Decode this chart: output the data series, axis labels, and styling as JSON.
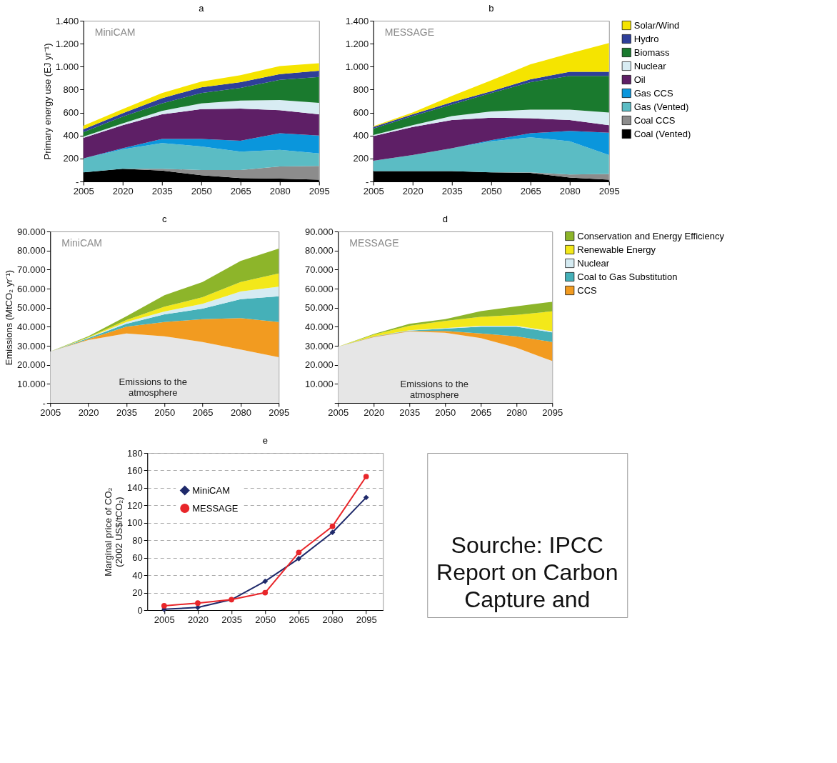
{
  "chart_data": [
    {
      "type": "area",
      "title": "a",
      "subtitle": "MiniCAM",
      "ylabel": "Primary energy use (EJ yr⁻¹)",
      "stacked": true,
      "x": [
        2005,
        2020,
        2035,
        2050,
        2065,
        2080,
        2095
      ],
      "xlim": [
        2005,
        2095
      ],
      "xticks": [
        2005,
        2020,
        2035,
        2050,
        2065,
        2080,
        2095
      ],
      "ylim": [
        0,
        1400
      ],
      "yticks": [
        {
          "value": 0,
          "label": "-"
        },
        {
          "value": 200,
          "label": "200"
        },
        {
          "value": 400,
          "label": "400"
        },
        {
          "value": 600,
          "label": "600"
        },
        {
          "value": 800,
          "label": "800"
        },
        {
          "value": 1000,
          "label": "1.000"
        },
        {
          "value": 1200,
          "label": "1.200"
        },
        {
          "value": 1400,
          "label": "1.400"
        }
      ],
      "series": [
        {
          "color": "#000000",
          "values": [
            80,
            110,
            95,
            55,
            30,
            25,
            15
          ]
        },
        {
          "color": "#8c8c8c",
          "values": [
            0,
            0,
            15,
            45,
            70,
            105,
            120
          ]
        },
        {
          "color": "#5bbcc4",
          "values": [
            120,
            170,
            225,
            205,
            160,
            145,
            110
          ]
        },
        {
          "color": "#0a96dc",
          "values": [
            0,
            10,
            35,
            65,
            95,
            145,
            155
          ]
        },
        {
          "color": "#5e1f66",
          "values": [
            180,
            200,
            215,
            260,
            280,
            200,
            185
          ]
        },
        {
          "color": "#d8ecf3",
          "values": [
            10,
            15,
            30,
            50,
            70,
            90,
            100
          ]
        },
        {
          "color": "#1a7a2e",
          "values": [
            40,
            60,
            65,
            90,
            110,
            175,
            225
          ]
        },
        {
          "color": "#2e3f99",
          "values": [
            25,
            30,
            45,
            50,
            50,
            50,
            55
          ]
        },
        {
          "color": "#f5e400",
          "values": [
            30,
            35,
            45,
            50,
            60,
            70,
            65
          ]
        }
      ]
    },
    {
      "type": "area",
      "title": "b",
      "subtitle": "MESSAGE",
      "stacked": true,
      "legend": "right",
      "x": [
        2005,
        2020,
        2035,
        2050,
        2065,
        2080,
        2095
      ],
      "xlim": [
        2005,
        2095
      ],
      "xticks": [
        2005,
        2020,
        2035,
        2050,
        2065,
        2080,
        2095
      ],
      "ylim": [
        0,
        1400
      ],
      "yticks": [
        {
          "value": 0,
          "label": "-"
        },
        {
          "value": 200,
          "label": "200"
        },
        {
          "value": 400,
          "label": "400"
        },
        {
          "value": 600,
          "label": "600"
        },
        {
          "value": 800,
          "label": "800"
        },
        {
          "value": 1000,
          "label": "1.000"
        },
        {
          "value": 1200,
          "label": "1.200"
        },
        {
          "value": 1400,
          "label": "1.400"
        }
      ],
      "series": [
        {
          "name": "Coal (Vented)",
          "color": "#000000",
          "values": [
            90,
            90,
            90,
            80,
            75,
            35,
            15
          ]
        },
        {
          "name": "Coal CCS",
          "color": "#8c8c8c",
          "values": [
            0,
            0,
            0,
            0,
            5,
            25,
            50
          ]
        },
        {
          "name": "Gas (Vented)",
          "color": "#5bbcc4",
          "values": [
            90,
            140,
            200,
            270,
            305,
            290,
            165
          ]
        },
        {
          "name": "Gas CCS",
          "color": "#0a96dc",
          "values": [
            0,
            0,
            0,
            10,
            35,
            90,
            195
          ]
        },
        {
          "name": "Oil",
          "color": "#5e1f66",
          "values": [
            215,
            245,
            245,
            195,
            130,
            95,
            65
          ]
        },
        {
          "name": "Nuclear",
          "color": "#d8ecf3",
          "values": [
            10,
            15,
            35,
            55,
            75,
            90,
            110
          ]
        },
        {
          "name": "Biomass",
          "color": "#1a7a2e",
          "values": [
            55,
            80,
            100,
            160,
            240,
            295,
            320
          ]
        },
        {
          "name": "Hydro",
          "color": "#2e3f99",
          "values": [
            15,
            15,
            20,
            15,
            25,
            35,
            35
          ]
        },
        {
          "name": "Solar/Wind",
          "color": "#f5e400",
          "values": [
            5,
            15,
            55,
            95,
            130,
            160,
            250
          ]
        }
      ]
    },
    {
      "type": "area",
      "title": "c",
      "subtitle": "MiniCAM",
      "ylabel": "Emissions (MtCO₂ yr⁻¹)",
      "stacked": true,
      "annotations": [
        "Emissions to the\natmosphere"
      ],
      "x": [
        2005,
        2020,
        2035,
        2050,
        2065,
        2080,
        2095
      ],
      "xlim": [
        2005,
        2095
      ],
      "xticks": [
        2005,
        2020,
        2035,
        2050,
        2065,
        2080,
        2095
      ],
      "ylim": [
        0,
        90000
      ],
      "yticks": [
        {
          "value": 0,
          "label": "-"
        },
        {
          "value": 10000,
          "label": "10.000"
        },
        {
          "value": 20000,
          "label": "20.000"
        },
        {
          "value": 30000,
          "label": "30.000"
        },
        {
          "value": 40000,
          "label": "40.000"
        },
        {
          "value": 50000,
          "label": "50.000"
        },
        {
          "value": 60000,
          "label": "60.000"
        },
        {
          "value": 70000,
          "label": "70.000"
        },
        {
          "value": 80000,
          "label": "80.000"
        },
        {
          "value": 90000,
          "label": "90.000"
        }
      ],
      "series": [
        {
          "color": "#e6e6e6",
          "values": [
            27000,
            33000,
            36500,
            35000,
            32000,
            28000,
            24000
          ]
        },
        {
          "color": "#f29b20",
          "values": [
            0,
            500,
            3500,
            7500,
            12000,
            16500,
            18500
          ]
        },
        {
          "color": "#45b0b8",
          "values": [
            0,
            500,
            1500,
            4000,
            5500,
            10000,
            13500
          ]
        },
        {
          "color": "#d5ebf2",
          "values": [
            0,
            200,
            1000,
            1500,
            2500,
            4000,
            5000
          ]
        },
        {
          "color": "#f3e81a",
          "values": [
            0,
            300,
            1000,
            2500,
            3500,
            5000,
            7000
          ]
        },
        {
          "color": "#8db52a",
          "values": [
            0,
            500,
            2000,
            6000,
            8000,
            11000,
            13000
          ]
        }
      ]
    },
    {
      "type": "area",
      "title": "d",
      "subtitle": "MESSAGE",
      "stacked": true,
      "legend": "right",
      "annotations": [
        "Emissions to the\natmosphere"
      ],
      "x": [
        2005,
        2020,
        2035,
        2050,
        2065,
        2080,
        2095
      ],
      "xlim": [
        2005,
        2095
      ],
      "xticks": [
        2005,
        2020,
        2035,
        2050,
        2065,
        2080,
        2095
      ],
      "ylim": [
        0,
        90000
      ],
      "yticks": [
        {
          "value": 0,
          "label": null
        },
        {
          "value": 10000,
          "label": "10.000"
        },
        {
          "value": 20000,
          "label": "20.000"
        },
        {
          "value": 30000,
          "label": "30.000"
        },
        {
          "value": 40000,
          "label": "40.000"
        },
        {
          "value": 50000,
          "label": "50.000"
        },
        {
          "value": 60000,
          "label": "60.000"
        },
        {
          "value": 70000,
          "label": "70.000"
        },
        {
          "value": 80000,
          "label": "80.000"
        },
        {
          "value": 90000,
          "label": "90.000"
        }
      ],
      "series": [
        {
          "color": "#e6e6e6",
          "values": [
            29500,
            34500,
            37500,
            36800,
            34000,
            29000,
            22000
          ]
        },
        {
          "name": "CCS",
          "color": "#f29b20",
          "values": [
            0,
            300,
            300,
            1000,
            2500,
            6000,
            10000
          ]
        },
        {
          "name": "Coal to Gas Substitution",
          "color": "#45b0b8",
          "values": [
            0,
            200,
            200,
            1200,
            3500,
            5000,
            5000
          ]
        },
        {
          "name": "Nuclear",
          "color": "#d5ebf2",
          "values": [
            0,
            0,
            200,
            300,
            500,
            500,
            600
          ]
        },
        {
          "name": "Renewable Energy",
          "color": "#f3e81a",
          "values": [
            0,
            800,
            2300,
            3700,
            4700,
            5700,
            10500
          ]
        },
        {
          "name": "Conservation and Energy Efficiency",
          "color": "#8db52a",
          "values": [
            0,
            400,
            1000,
            1000,
            3000,
            4500,
            5000
          ]
        }
      ]
    },
    {
      "type": "line",
      "title": "e",
      "ylabel": "Marginal price of CO₂\n(2002 US$/tCO₂)",
      "legend": "top left",
      "grid": "y",
      "annotations": [
        "Sourche: IPCC\nReport on Carbon\nCapture and"
      ],
      "categories": [
        "2005",
        "2020",
        "2035",
        "2050",
        "2065",
        "2080",
        "2095"
      ],
      "ylim": [
        0,
        180
      ],
      "yticks": [
        0,
        20,
        40,
        60,
        80,
        100,
        120,
        140,
        160,
        180
      ],
      "series": [
        {
          "name": "MiniCAM",
          "color": "#1f2a6b",
          "marker": "diamond",
          "values": [
            1,
            3,
            12,
            33,
            59,
            89,
            129
          ]
        },
        {
          "name": "MESSAGE",
          "color": "#e8262a",
          "marker": "circle",
          "values": [
            5,
            8,
            12,
            20,
            66,
            96,
            153
          ]
        }
      ]
    }
  ]
}
